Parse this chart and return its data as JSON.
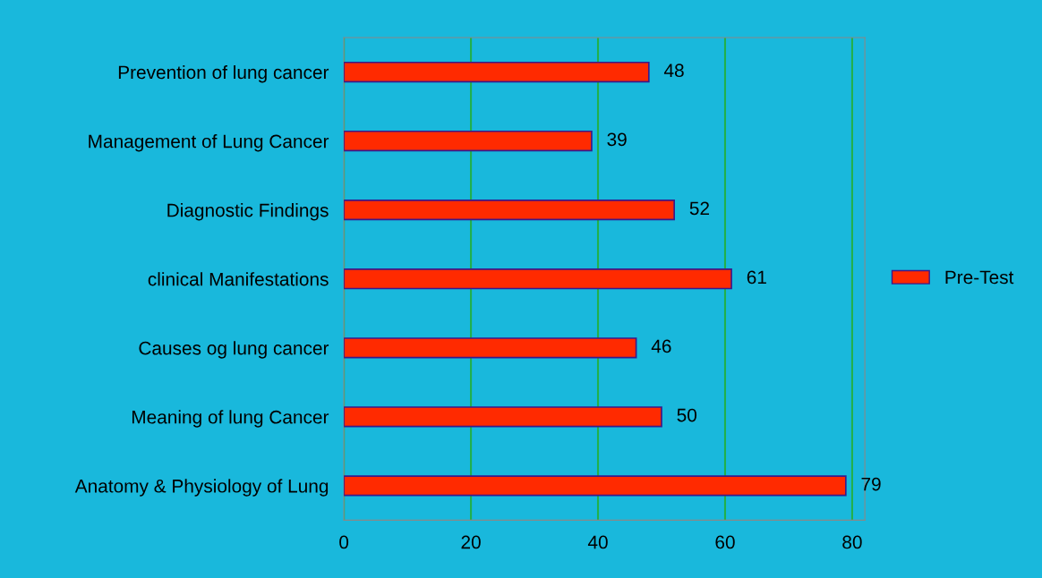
{
  "chart_data": {
    "type": "bar",
    "orientation": "horizontal",
    "categories": [
      "Prevention of lung cancer",
      "Management of Lung Cancer",
      "Diagnostic Findings",
      "clinical Manifestations",
      "Causes og lung cancer",
      "Meaning of lung Cancer",
      "Anatomy & Physiology of Lung"
    ],
    "series": [
      {
        "name": "Pre-Test",
        "color": "#ff2a00",
        "values": [
          48,
          39,
          52,
          61,
          46,
          50,
          79
        ]
      }
    ],
    "xlim": [
      0,
      82
    ],
    "xticks": [
      0,
      20,
      40,
      60,
      80
    ],
    "grid": "x",
    "legend": "right",
    "data_labels": true
  }
}
